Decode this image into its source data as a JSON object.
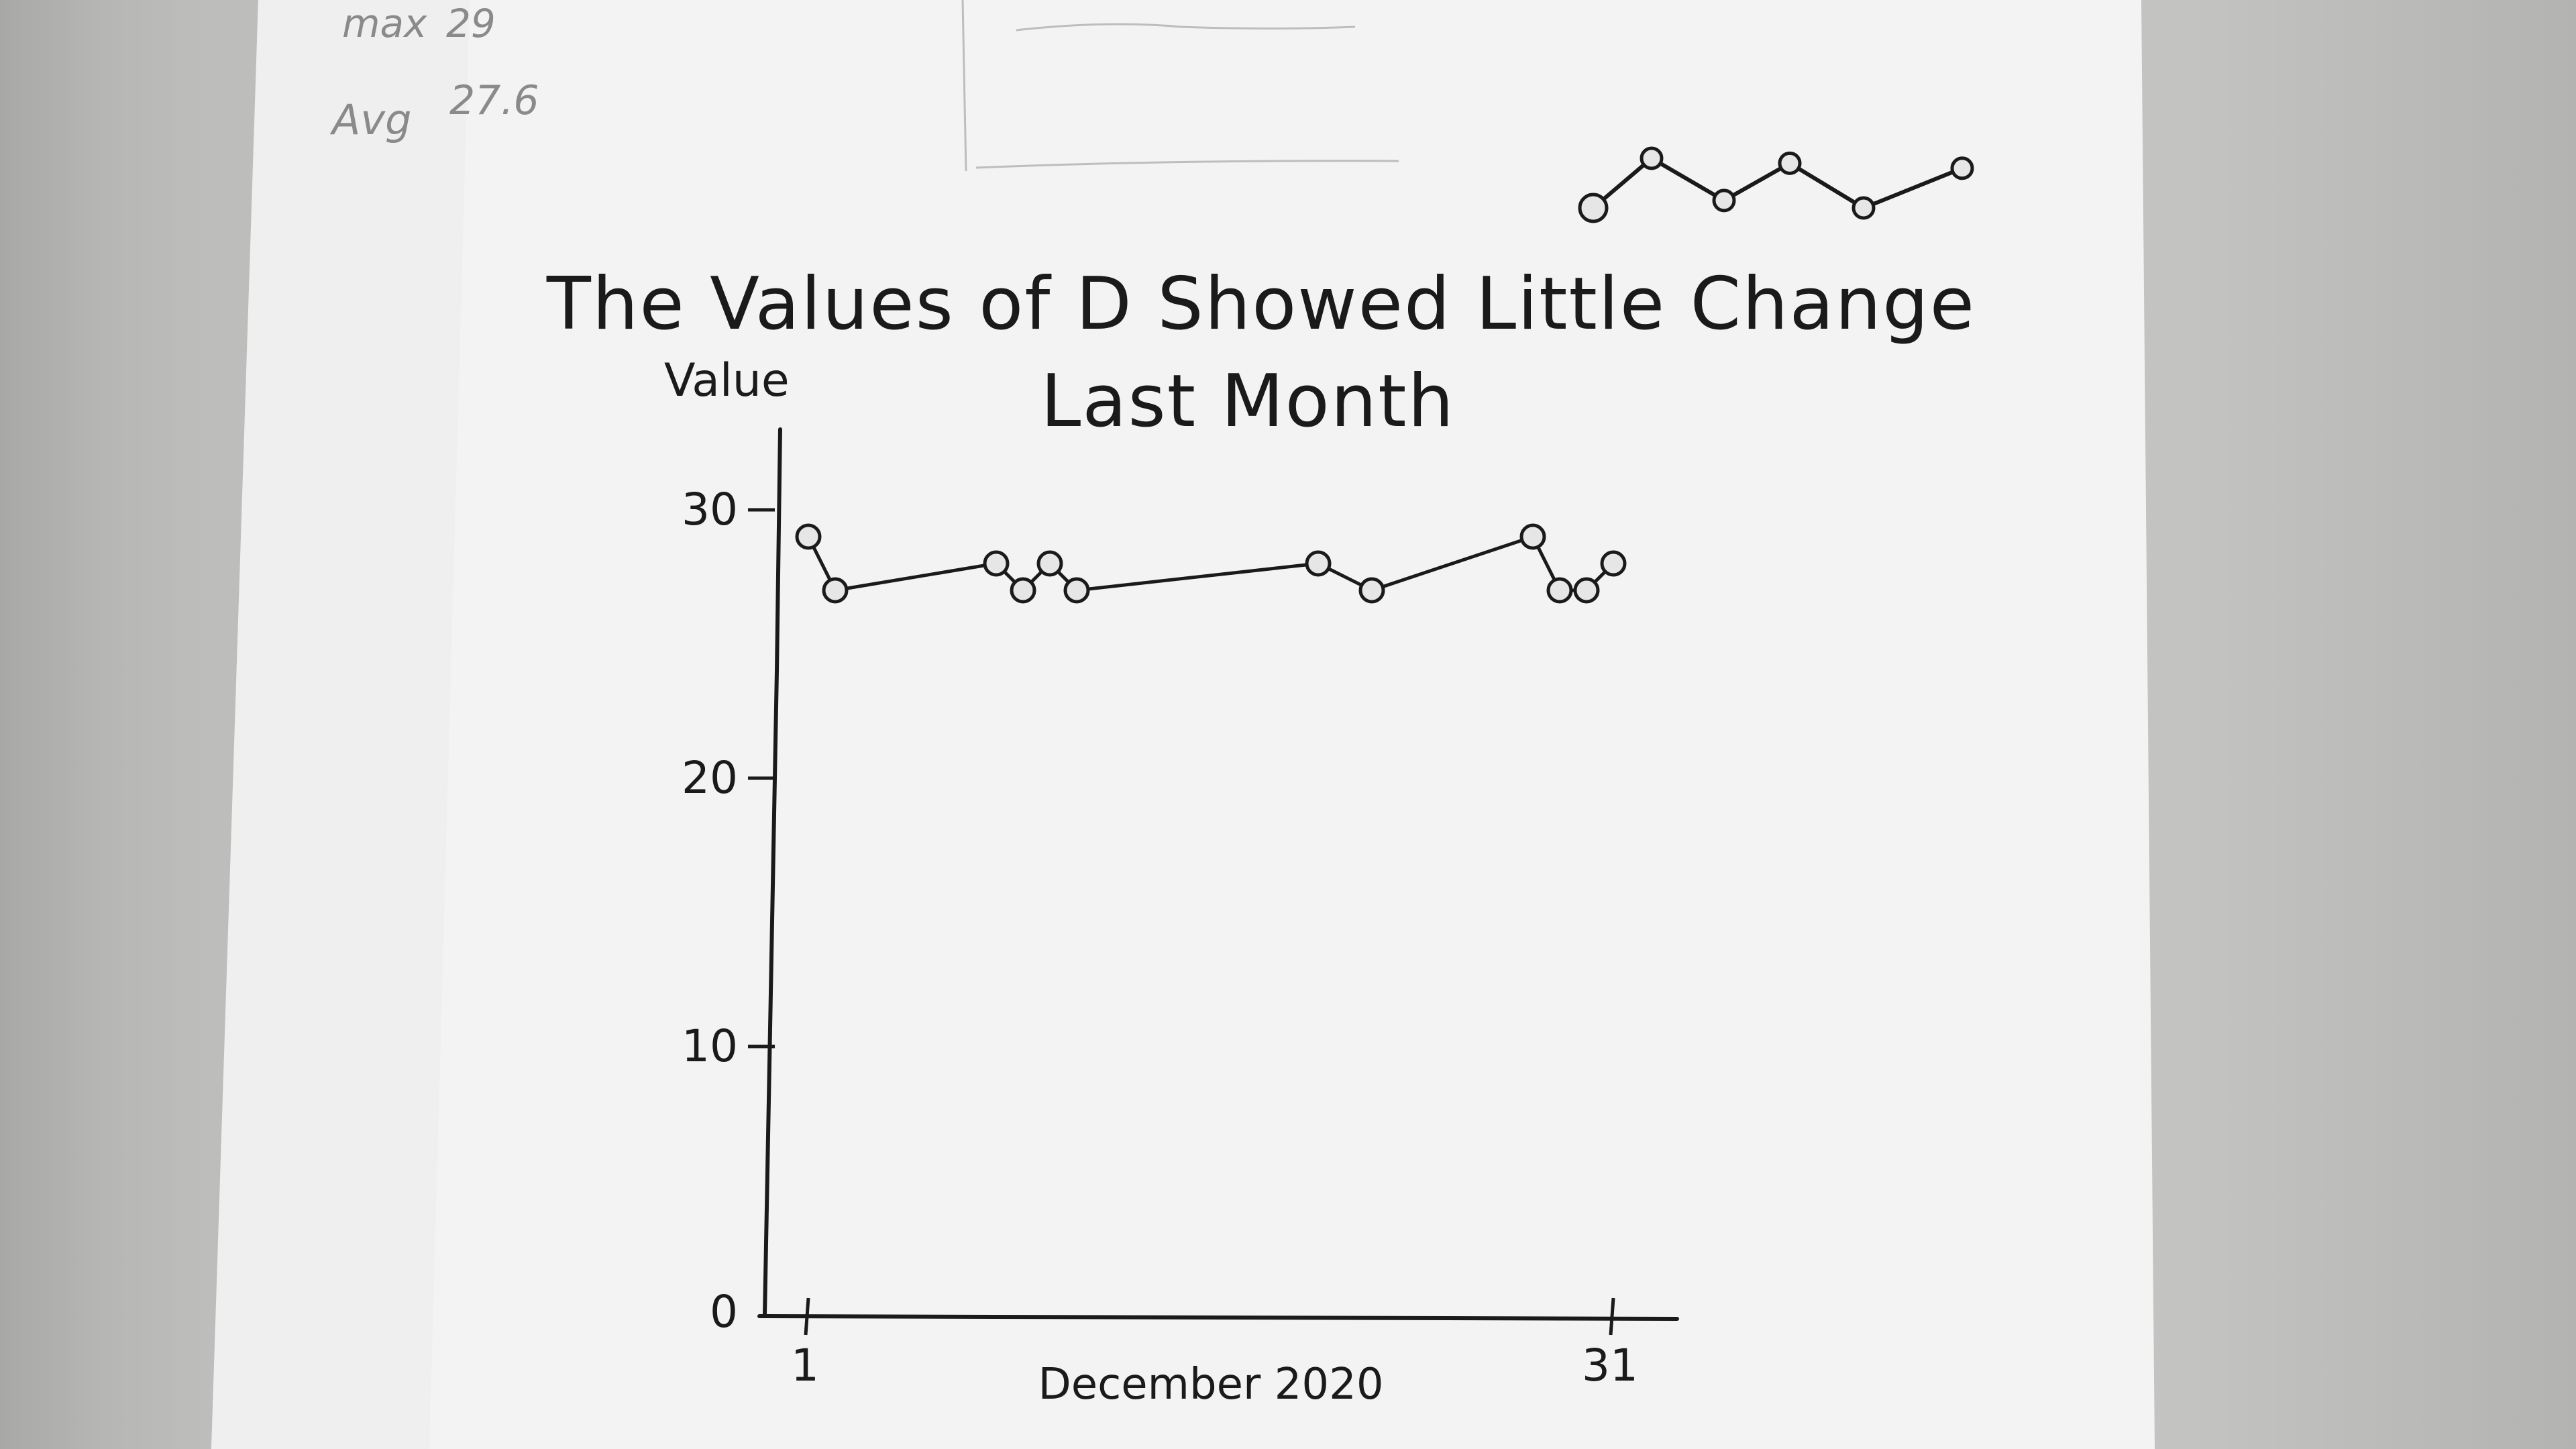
{
  "notes": {
    "max_label": "max",
    "max_value": "29",
    "avg_label": "Avg",
    "avg_value": "27.6"
  },
  "chart_data": {
    "type": "line",
    "title": "The Values of D Showed Little Change Last Month",
    "title_lines": [
      "The Values of D Showed Little Change",
      "Last Month"
    ],
    "ylabel": "Value",
    "xlabel": "December 2020",
    "x_tick_labels": [
      "1",
      "31"
    ],
    "y_tick_labels": [
      "0",
      "10",
      "20",
      "30"
    ],
    "xlim": [
      1,
      31
    ],
    "ylim": [
      0,
      30
    ],
    "grid": false,
    "series": [
      {
        "x": [
          1,
          2,
          8,
          9,
          10,
          11,
          20,
          22,
          28,
          29,
          30,
          31
        ],
        "y": [
          29,
          27,
          28,
          27,
          28,
          27,
          28,
          27,
          29,
          27,
          27,
          28
        ],
        "color": "#1a1a1a"
      }
    ]
  },
  "decor_sparkline": {
    "values": [
      0,
      2,
      0.3,
      1.8,
      0,
      1.6
    ]
  }
}
